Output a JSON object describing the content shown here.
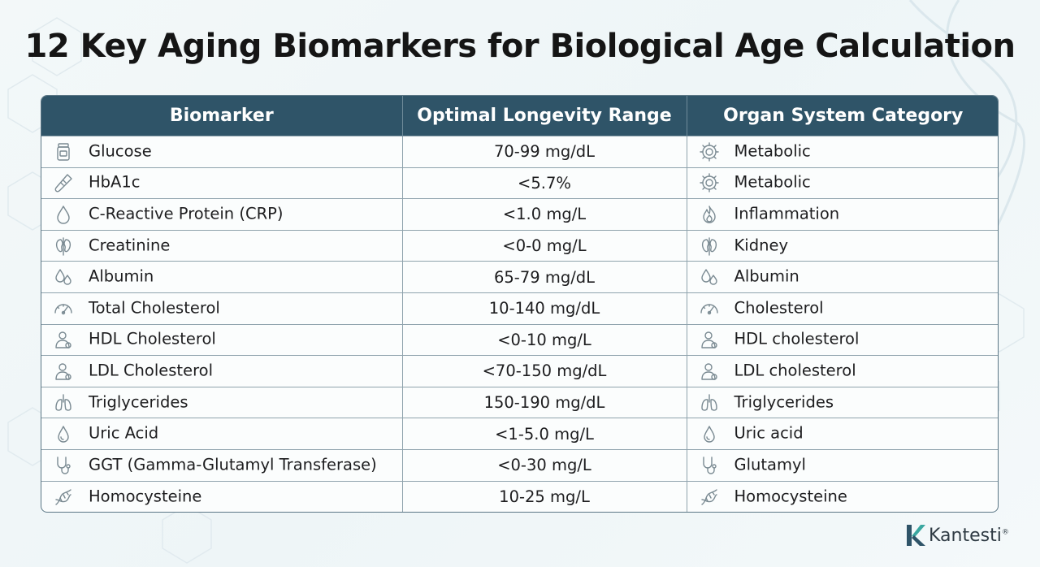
{
  "title": "12 Key Aging Biomarkers for Biological Age Calculation",
  "table": {
    "headers": [
      "Biomarker",
      "Optimal Longevity Range",
      "Organ System Category"
    ],
    "rows": [
      {
        "biomarker": "Glucose",
        "biomarker_icon": "vial-icon",
        "range": "70-99 mg/dL",
        "category": "Metabolic",
        "category_icon": "gear-icon"
      },
      {
        "biomarker": "HbA1c",
        "biomarker_icon": "test-tube-icon",
        "range": "<5.7%",
        "category": "Metabolic",
        "category_icon": "gear-icon"
      },
      {
        "biomarker": "C-Reactive Protein (CRP)",
        "biomarker_icon": "drop-icon",
        "range": "<1.0 mg/L",
        "category": "Inflammation",
        "category_icon": "flame-icon"
      },
      {
        "biomarker": "Creatinine",
        "biomarker_icon": "kidney-icon",
        "range": "<0-0 mg/L",
        "category": "Kidney",
        "category_icon": "kidney-icon"
      },
      {
        "biomarker": "Albumin",
        "biomarker_icon": "drops-icon",
        "range": "65-79 mg/dL",
        "category": "Albumin",
        "category_icon": "drops-icon"
      },
      {
        "biomarker": "Total Cholesterol",
        "biomarker_icon": "gauge-icon",
        "range": "10-140 mg/dL",
        "category": "Cholesterol",
        "category_icon": "gauge-icon"
      },
      {
        "biomarker": "HDL Cholesterol",
        "biomarker_icon": "person-icon",
        "range": "<0-10 mg/L",
        "category": "HDL cholesterol",
        "category_icon": "person-icon"
      },
      {
        "biomarker": "LDL Cholesterol",
        "biomarker_icon": "person-icon",
        "range": "<70-150 mg/dL",
        "category": "LDL cholesterol",
        "category_icon": "person-icon"
      },
      {
        "biomarker": "Triglycerides",
        "biomarker_icon": "lungs-icon",
        "range": "150-190 mg/dL",
        "category": "Triglycerides",
        "category_icon": "lungs-icon"
      },
      {
        "biomarker": "Uric Acid",
        "biomarker_icon": "drop-outline-icon",
        "range": "<1-5.0 mg/L",
        "category": "Uric acid",
        "category_icon": "drop-outline-icon"
      },
      {
        "biomarker": "GGT (Gamma-Glutamyl Transferase)",
        "biomarker_icon": "stethoscope-icon",
        "range": "<0-30 mg/L",
        "category": "Glutamyl",
        "category_icon": "stethoscope-icon"
      },
      {
        "biomarker": "Homocysteine",
        "biomarker_icon": "dna-icon",
        "range": "10-25 mg/L",
        "category": "Homocysteine",
        "category_icon": "dna-icon"
      }
    ]
  },
  "brand": {
    "name": "Kantesti",
    "mark": "®",
    "logo_icon": "k-logo-icon",
    "color_dark": "#2f5468",
    "color_teal": "#3aa7a0"
  },
  "colors": {
    "header_bg": "#2f5468",
    "icon": "#7a8a92"
  }
}
